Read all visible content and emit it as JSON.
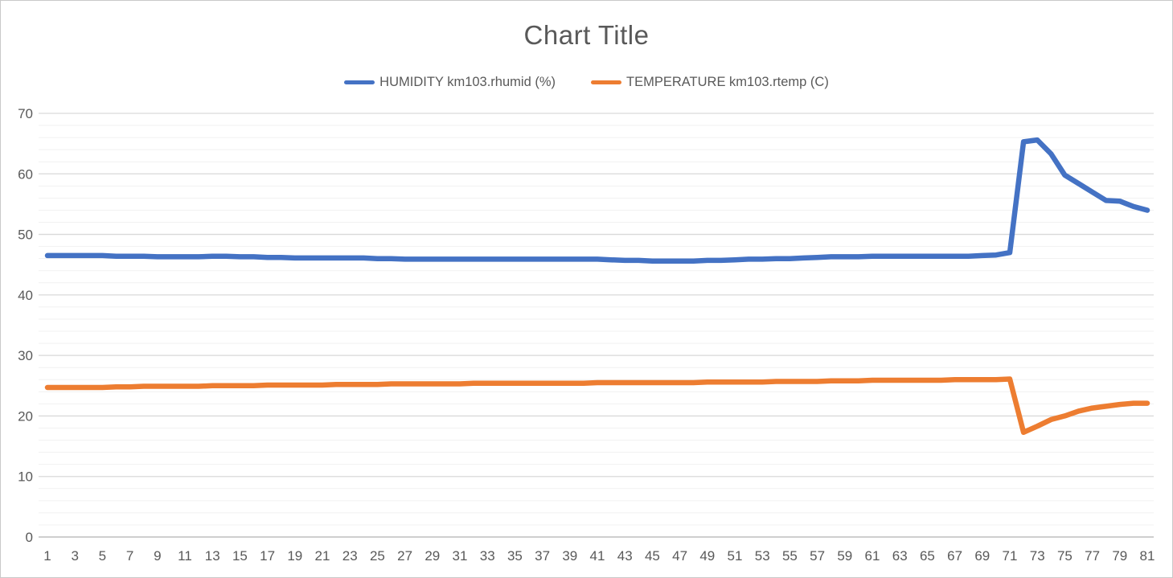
{
  "window": {
    "background": "#ffffff",
    "border_color": "#c9c9c9"
  },
  "chart": {
    "title": "Chart Title",
    "legend": [
      {
        "label": "HUMIDITY km103.rhumid (%)",
        "color": "#4472C4"
      },
      {
        "label": "TEMPERATURE km103.rtemp (C)",
        "color": "#ED7D31"
      }
    ]
  },
  "colors": {
    "title_text": "#595959",
    "axis_text": "#595959",
    "major_gridline": "#D9D9D9",
    "minor_gridline": "#F1F1F1",
    "axis_line": "#BFBFBF",
    "series_humidity": "#4472C4",
    "series_temperature": "#ED7D31"
  },
  "chart_data": {
    "type": "line",
    "title": "Chart Title",
    "legend_position": "top",
    "grid": "horizontal major every 10 + minor every 2",
    "xlabel": "",
    "ylabel": "",
    "ylim": [
      0,
      70
    ],
    "y_major_ticks": [
      0,
      10,
      20,
      30,
      40,
      50,
      60,
      70
    ],
    "y_minor_step": 2,
    "x_tick_step": 2,
    "x_tick_labels": [
      1,
      3,
      5,
      7,
      9,
      11,
      13,
      15,
      17,
      19,
      21,
      23,
      25,
      27,
      29,
      31,
      33,
      35,
      37,
      39,
      41,
      43,
      45,
      47,
      49,
      51,
      53,
      55,
      57,
      59,
      61,
      63,
      65,
      67,
      69,
      71,
      73,
      75,
      77,
      79,
      81
    ],
    "x": [
      1,
      2,
      3,
      4,
      5,
      6,
      7,
      8,
      9,
      10,
      11,
      12,
      13,
      14,
      15,
      16,
      17,
      18,
      19,
      20,
      21,
      22,
      23,
      24,
      25,
      26,
      27,
      28,
      29,
      30,
      31,
      32,
      33,
      34,
      35,
      36,
      37,
      38,
      39,
      40,
      41,
      42,
      43,
      44,
      45,
      46,
      47,
      48,
      49,
      50,
      51,
      52,
      53,
      54,
      55,
      56,
      57,
      58,
      59,
      60,
      61,
      62,
      63,
      64,
      65,
      66,
      67,
      68,
      69,
      70,
      71,
      72,
      73,
      74,
      75,
      76,
      77,
      78,
      79,
      80,
      81
    ],
    "series": [
      {
        "name": "HUMIDITY km103.rhumid (%)",
        "color": "#4472C4",
        "values": [
          46.5,
          46.5,
          46.5,
          46.5,
          46.5,
          46.4,
          46.4,
          46.4,
          46.3,
          46.3,
          46.3,
          46.3,
          46.4,
          46.4,
          46.3,
          46.3,
          46.2,
          46.2,
          46.1,
          46.1,
          46.1,
          46.1,
          46.1,
          46.1,
          46.0,
          46.0,
          45.9,
          45.9,
          45.9,
          45.9,
          45.9,
          45.9,
          45.9,
          45.9,
          45.9,
          45.9,
          45.9,
          45.9,
          45.9,
          45.9,
          45.9,
          45.8,
          45.7,
          45.7,
          45.6,
          45.6,
          45.6,
          45.6,
          45.7,
          45.7,
          45.8,
          45.9,
          45.9,
          46.0,
          46.0,
          46.1,
          46.2,
          46.3,
          46.3,
          46.3,
          46.4,
          46.4,
          46.4,
          46.4,
          46.4,
          46.4,
          46.4,
          46.4,
          46.5,
          46.6,
          47.0,
          65.3,
          65.6,
          63.3,
          59.8,
          58.4,
          57.0,
          55.6,
          55.5,
          54.6,
          54.0
        ]
      },
      {
        "name": "TEMPERATURE km103.rtemp (C)",
        "color": "#ED7D31",
        "values": [
          24.7,
          24.7,
          24.7,
          24.7,
          24.7,
          24.8,
          24.8,
          24.9,
          24.9,
          24.9,
          24.9,
          24.9,
          25.0,
          25.0,
          25.0,
          25.0,
          25.1,
          25.1,
          25.1,
          25.1,
          25.1,
          25.2,
          25.2,
          25.2,
          25.2,
          25.3,
          25.3,
          25.3,
          25.3,
          25.3,
          25.3,
          25.4,
          25.4,
          25.4,
          25.4,
          25.4,
          25.4,
          25.4,
          25.4,
          25.4,
          25.5,
          25.5,
          25.5,
          25.5,
          25.5,
          25.5,
          25.5,
          25.5,
          25.6,
          25.6,
          25.6,
          25.6,
          25.6,
          25.7,
          25.7,
          25.7,
          25.7,
          25.8,
          25.8,
          25.8,
          25.9,
          25.9,
          25.9,
          25.9,
          25.9,
          25.9,
          26.0,
          26.0,
          26.0,
          26.0,
          26.1,
          17.3,
          18.3,
          19.4,
          20.0,
          20.8,
          21.3,
          21.6,
          21.9,
          22.1,
          22.1
        ]
      }
    ]
  }
}
